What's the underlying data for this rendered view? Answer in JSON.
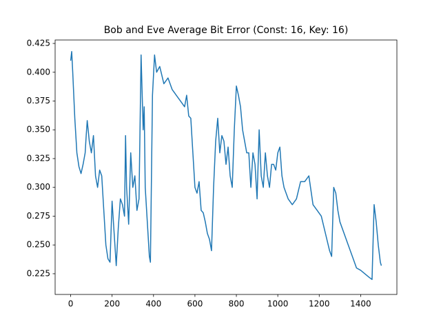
{
  "chart_data": {
    "type": "line",
    "title": "Bob and Eve Average Bit Error (Const: 16, Key: 16)",
    "x": [
      0,
      5,
      10,
      20,
      30,
      40,
      50,
      60,
      70,
      75,
      80,
      90,
      100,
      110,
      120,
      130,
      140,
      150,
      160,
      170,
      180,
      190,
      200,
      210,
      220,
      230,
      240,
      250,
      260,
      265,
      270,
      280,
      290,
      300,
      310,
      320,
      330,
      340,
      350,
      355,
      360,
      370,
      380,
      385,
      395,
      405,
      415,
      430,
      450,
      470,
      490,
      510,
      530,
      550,
      560,
      570,
      580,
      590,
      600,
      610,
      620,
      630,
      640,
      650,
      660,
      670,
      680,
      690,
      700,
      710,
      720,
      730,
      740,
      750,
      760,
      770,
      780,
      790,
      800,
      810,
      820,
      830,
      840,
      850,
      860,
      870,
      880,
      890,
      900,
      910,
      920,
      930,
      940,
      950,
      960,
      970,
      980,
      990,
      1000,
      1010,
      1020,
      1030,
      1050,
      1070,
      1090,
      1110,
      1130,
      1150,
      1170,
      1190,
      1210,
      1230,
      1250,
      1260,
      1270,
      1280,
      1290,
      1300,
      1320,
      1340,
      1360,
      1380,
      1400,
      1420,
      1440,
      1455,
      1465,
      1475,
      1485,
      1495,
      1500
    ],
    "series": [
      {
        "name": "Bob and Eve",
        "color": "#1f77b4",
        "values": [
          0.41,
          0.418,
          0.4,
          0.36,
          0.33,
          0.318,
          0.312,
          0.32,
          0.33,
          0.345,
          0.358,
          0.34,
          0.33,
          0.345,
          0.31,
          0.3,
          0.315,
          0.31,
          0.28,
          0.25,
          0.238,
          0.235,
          0.288,
          0.26,
          0.232,
          0.265,
          0.29,
          0.285,
          0.275,
          0.345,
          0.3,
          0.268,
          0.33,
          0.3,
          0.31,
          0.28,
          0.29,
          0.415,
          0.35,
          0.37,
          0.3,
          0.27,
          0.24,
          0.235,
          0.38,
          0.415,
          0.4,
          0.405,
          0.39,
          0.395,
          0.385,
          0.38,
          0.375,
          0.37,
          0.38,
          0.362,
          0.36,
          0.33,
          0.3,
          0.295,
          0.305,
          0.28,
          0.278,
          0.27,
          0.26,
          0.255,
          0.245,
          0.3,
          0.34,
          0.36,
          0.33,
          0.345,
          0.34,
          0.32,
          0.335,
          0.31,
          0.3,
          0.35,
          0.388,
          0.38,
          0.37,
          0.35,
          0.34,
          0.33,
          0.33,
          0.3,
          0.33,
          0.32,
          0.29,
          0.35,
          0.31,
          0.3,
          0.33,
          0.31,
          0.3,
          0.32,
          0.32,
          0.315,
          0.33,
          0.335,
          0.31,
          0.3,
          0.29,
          0.285,
          0.29,
          0.305,
          0.305,
          0.31,
          0.285,
          0.28,
          0.275,
          0.26,
          0.245,
          0.24,
          0.3,
          0.295,
          0.28,
          0.27,
          0.26,
          0.25,
          0.24,
          0.23,
          0.228,
          0.225,
          0.222,
          0.22,
          0.285,
          0.27,
          0.25,
          0.235,
          0.232
        ]
      }
    ],
    "xlim": [
      -75,
      1575
    ],
    "ylim": [
      0.207,
      0.428
    ],
    "xticks": [
      0,
      200,
      400,
      600,
      800,
      1000,
      1200,
      1400
    ],
    "yticks": [
      0.225,
      {
        "value": 0.25,
        "label": "0.250"
      },
      0.275,
      {
        "value": 0.3,
        "label": "0.300"
      },
      0.325,
      {
        "value": 0.35,
        "label": "0.350"
      },
      0.375,
      {
        "value": 0.4,
        "label": "0.400"
      },
      0.425
    ]
  }
}
